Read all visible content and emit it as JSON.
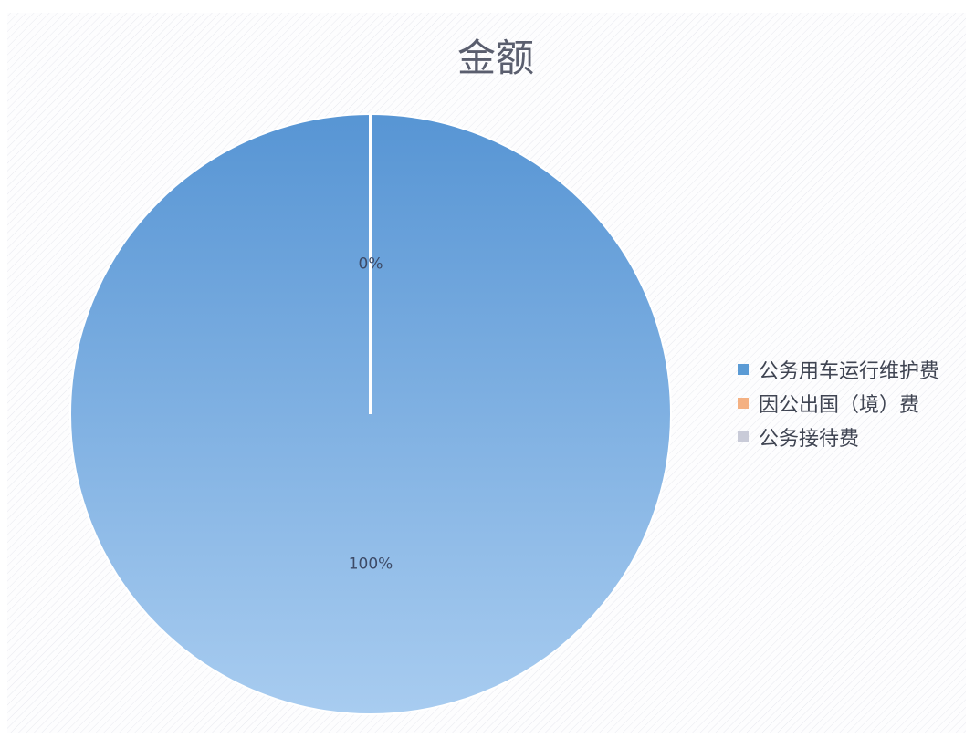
{
  "chart_data": {
    "type": "pie",
    "title": "金额",
    "series": [
      {
        "values": [
          100,
          0,
          0
        ],
        "value_labels": [
          "100%",
          "0%",
          ""
        ]
      }
    ],
    "categories": [
      "公务用车运行维护费",
      "因公出国（境）费",
      "公务接待费"
    ],
    "colors": [
      "#5b9bd5",
      "#f4b183",
      "#c9cbd8"
    ],
    "legend": "right",
    "start_angle": "12 o'clock, clockwise"
  }
}
